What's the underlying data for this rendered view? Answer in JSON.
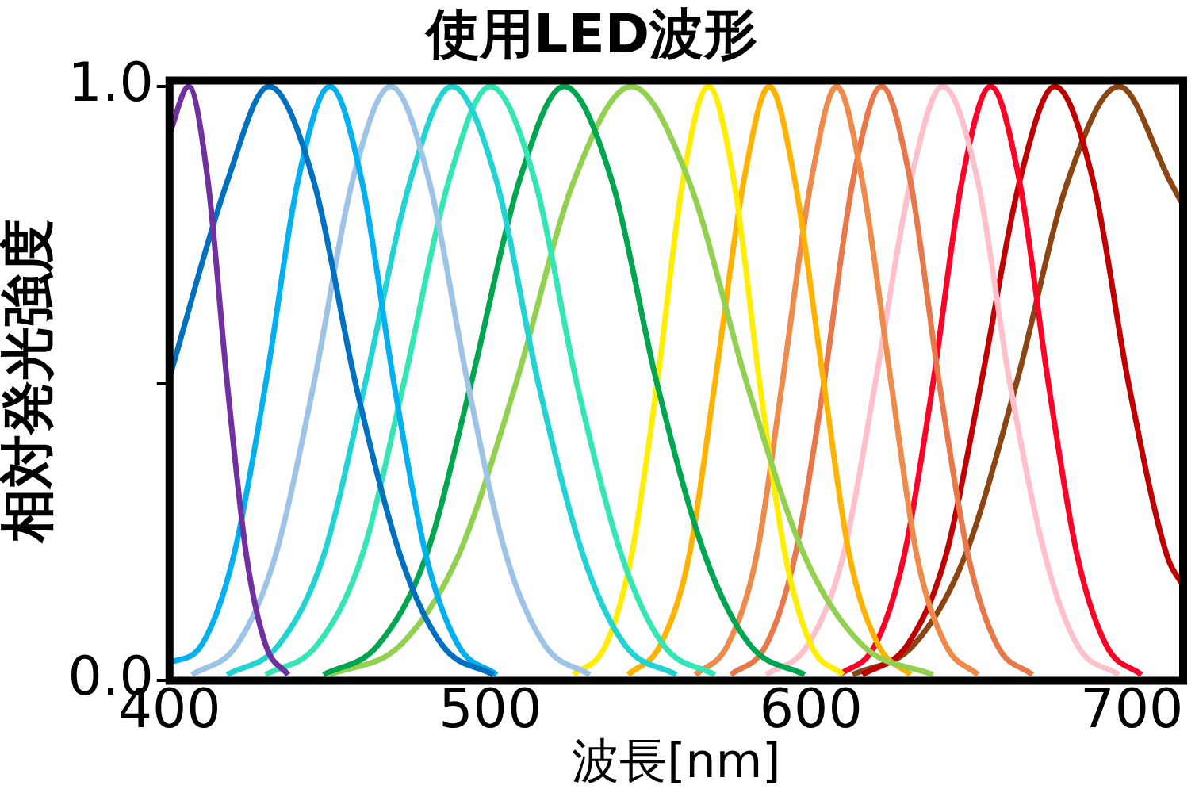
{
  "chart_data": {
    "type": "line",
    "title": "使用LED波形",
    "xlabel": "波長[nm]",
    "ylabel": "相対発光強度",
    "xlim": [
      400,
      716
    ],
    "xticks": [
      400,
      500,
      600,
      700
    ],
    "ylim": [
      0,
      1.01
    ],
    "yticks": [
      {
        "value": 0,
        "label": "0.0"
      },
      {
        "value": 0.5,
        "label": null
      },
      {
        "value": 1,
        "label": "1.0"
      }
    ],
    "grid": false,
    "legend": false,
    "marker": "none",
    "line_style": "solid",
    "series": [
      {
        "color": "#7030a0",
        "x": [
          400,
          406,
          412,
          418,
          424,
          430,
          437
        ],
        "values": [
          0.92,
          1,
          0.84,
          0.5,
          0.21,
          0.06,
          0.01
        ]
      },
      {
        "color": "#0070c0",
        "x": [
          400,
          418,
          431,
          445,
          458,
          472,
          485,
          501
        ],
        "values": [
          0.51,
          0.84,
          1,
          0.84,
          0.5,
          0.21,
          0.06,
          0.01
        ]
      },
      {
        "color": "#00b0f0",
        "x": [
          400,
          410,
          420,
          430,
          440,
          450,
          460,
          470,
          480,
          490,
          502
        ],
        "values": [
          0.03,
          0.06,
          0.21,
          0.5,
          0.84,
          1,
          0.84,
          0.5,
          0.21,
          0.06,
          0.01
        ]
      },
      {
        "color": "#9dc3e6",
        "x": [
          407,
          421,
          433,
          445,
          457,
          469,
          481,
          493,
          505,
          517,
          531
        ],
        "values": [
          0.01,
          0.06,
          0.21,
          0.5,
          0.84,
          1,
          0.84,
          0.5,
          0.21,
          0.06,
          0.01
        ]
      },
      {
        "color": "#22d3d3",
        "x": [
          418,
          434,
          448,
          461,
          475,
          488,
          502,
          515,
          529,
          542,
          558
        ],
        "values": [
          0.01,
          0.06,
          0.21,
          0.5,
          0.84,
          1,
          0.84,
          0.5,
          0.21,
          0.06,
          0.01
        ]
      },
      {
        "color": "#33e6b4",
        "x": [
          430,
          446,
          460,
          473,
          487,
          500,
          514,
          527,
          541,
          554,
          570
        ],
        "values": [
          0.01,
          0.06,
          0.21,
          0.5,
          0.84,
          1,
          0.84,
          0.5,
          0.21,
          0.06,
          0.01
        ]
      },
      {
        "color": "#00a550",
        "x": [
          448,
          465,
          480,
          494,
          509,
          523,
          538,
          552,
          567,
          581,
          598
        ],
        "values": [
          0.01,
          0.06,
          0.21,
          0.5,
          0.84,
          1,
          0.84,
          0.5,
          0.21,
          0.06,
          0.01
        ]
      },
      {
        "color": "#92d050",
        "x": [
          450,
          472,
          490,
          508,
          526,
          544,
          562,
          580,
          598,
          616,
          638
        ],
        "values": [
          0.01,
          0.06,
          0.21,
          0.5,
          0.84,
          1,
          0.84,
          0.5,
          0.21,
          0.06,
          0.01
        ]
      },
      {
        "color": "#ffee00",
        "x": [
          526,
          536,
          544,
          552,
          560,
          568,
          576,
          584,
          592,
          600,
          610
        ],
        "values": [
          0.01,
          0.06,
          0.21,
          0.5,
          0.84,
          1,
          0.84,
          0.5,
          0.21,
          0.06,
          0.01
        ]
      },
      {
        "color": "#ffb300",
        "x": [
          543,
          553,
          562,
          570,
          579,
          587,
          595,
          604,
          612,
          621,
          631
        ],
        "values": [
          0.01,
          0.06,
          0.21,
          0.5,
          0.84,
          1,
          0.84,
          0.5,
          0.21,
          0.06,
          0.01
        ]
      },
      {
        "color": "#ee8a4a",
        "x": [
          564,
          574,
          583,
          591,
          600,
          608,
          616,
          625,
          633,
          642,
          652
        ],
        "values": [
          0.01,
          0.06,
          0.21,
          0.5,
          0.84,
          1,
          0.84,
          0.5,
          0.21,
          0.06,
          0.01
        ]
      },
      {
        "color": "#e8784a",
        "x": [
          575,
          586,
          595,
          604,
          613,
          622,
          631,
          640,
          649,
          658,
          669
        ],
        "values": [
          0.01,
          0.06,
          0.21,
          0.5,
          0.84,
          1,
          0.84,
          0.5,
          0.21,
          0.06,
          0.01
        ]
      },
      {
        "color": "#ffc0cb",
        "x": [
          586,
          599,
          610,
          620,
          631,
          641,
          652,
          662,
          673,
          683,
          696
        ],
        "values": [
          0.01,
          0.06,
          0.21,
          0.5,
          0.84,
          1,
          0.84,
          0.5,
          0.21,
          0.06,
          0.01
        ]
      },
      {
        "color": "#ff0026",
        "x": [
          609,
          620,
          629,
          638,
          647,
          656,
          665,
          674,
          683,
          692,
          703
        ],
        "values": [
          0.01,
          0.06,
          0.21,
          0.5,
          0.84,
          1,
          0.84,
          0.5,
          0.21,
          0.06,
          0.01
        ]
      },
      {
        "color": "#c00000",
        "x": [
          616,
          630,
          642,
          653,
          665,
          676,
          688,
          699,
          711,
          716
        ],
        "values": [
          0.01,
          0.06,
          0.21,
          0.5,
          0.84,
          1,
          0.84,
          0.5,
          0.21,
          0.16
        ]
      },
      {
        "color": "#8b4513",
        "x": [
          613,
          632,
          648,
          664,
          680,
          696,
          712,
          716
        ],
        "values": [
          0.01,
          0.06,
          0.21,
          0.5,
          0.84,
          1,
          0.84,
          0.8
        ]
      }
    ]
  }
}
